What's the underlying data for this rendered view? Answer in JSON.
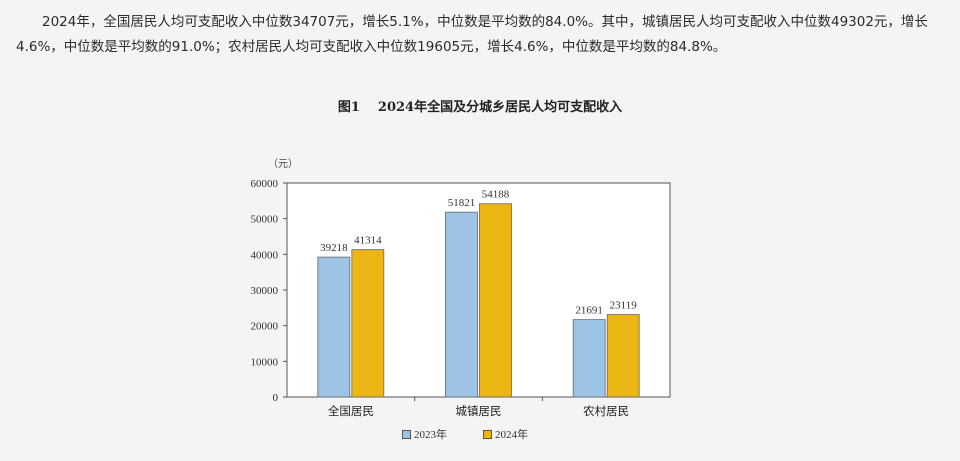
{
  "paragraph": "2024年，全国居民人均可支配收入中位数34707元，增长5.1%，中位数是平均数的84.0%。其中，城镇居民人均可支配收入中位数49302元，增长4.6%，中位数是平均数的91.0%；农村居民人均可支配收入中位数19605元，增长4.6%，中位数是平均数的84.8%。",
  "figure": {
    "number": "图1",
    "title": "2024年全国及分城乡居民人均可支配收入"
  },
  "chart_data": {
    "type": "bar",
    "title": "图1    2024年全国及分城乡居民人均可支配收入",
    "unit_label": "（元）",
    "categories": [
      "全国居民",
      "城镇居民",
      "农村居民"
    ],
    "series": [
      {
        "name": "2023年",
        "values": [
          39218,
          51821,
          21691
        ],
        "color": "#9dc3e6"
      },
      {
        "name": "2024年",
        "values": [
          41314,
          54188,
          23119
        ],
        "color": "#ebb513"
      }
    ],
    "ylim": [
      0,
      60000
    ],
    "yticks": [
      0,
      10000,
      20000,
      30000,
      40000,
      50000,
      60000
    ],
    "data_labels": true,
    "grid": false,
    "legend_position": "bottom"
  }
}
